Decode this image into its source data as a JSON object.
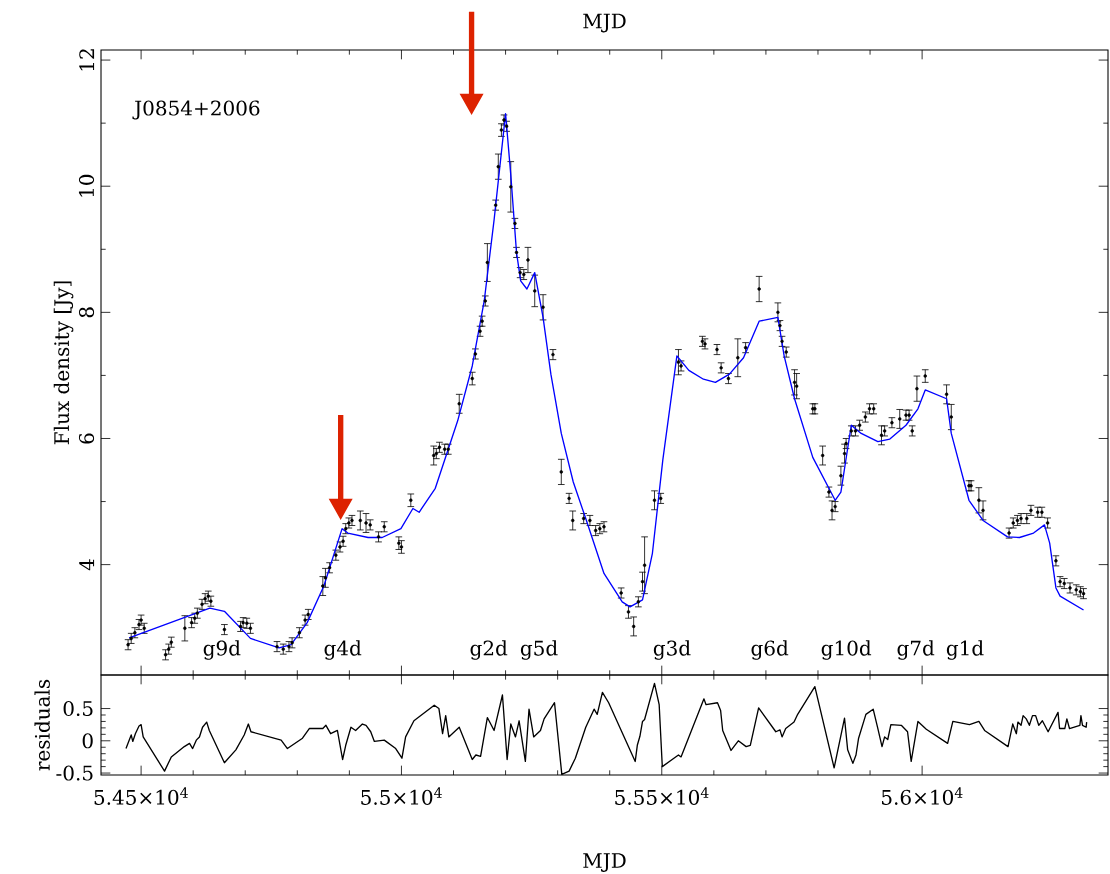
{
  "chart_data": [
    {
      "type": "scatter",
      "title": "J0854+2006",
      "x2label": "MJD",
      "ylabel": "Flux density [Jy]",
      "tick_labels": "y",
      "xlim": [
        54423,
        56357
      ],
      "ylim": [
        2.25,
        12.16
      ],
      "xticks": [
        {
          "value": 54500,
          "label": null
        },
        {
          "value": 55000,
          "label": null
        },
        {
          "value": 55500,
          "label": null
        },
        {
          "value": 56000,
          "label": null
        }
      ],
      "yticks": [
        4,
        6,
        8,
        10,
        12
      ],
      "annotations": [
        "g9d",
        "g4d",
        "g2d",
        "g5d",
        "g3d",
        "g6d",
        "g10d",
        "g7d",
        "g1d"
      ],
      "series": [
        {
          "type": "scatter",
          "color": "#000000",
          "marker": "circle",
          "x": [
            54475,
            54481,
            54488,
            54496,
            54500,
            54506,
            54547,
            54553,
            54558,
            54584,
            54597,
            54603,
            54608,
            54617,
            54623,
            54629,
            54634,
            54660,
            54691,
            54696,
            54703,
            54710,
            54761,
            54773,
            54784,
            54790,
            54804,
            54815,
            54821,
            54849,
            54854,
            54862,
            54874,
            54882,
            54888,
            54893,
            54899,
            54905,
            54921,
            54932,
            54940,
            54956,
            54967,
            54995,
            55000,
            55018,
            55062,
            55067,
            55073,
            55083,
            55090,
            55111,
            55136,
            55142,
            55151,
            55155,
            55161,
            55165,
            55181,
            55186,
            55192,
            55197,
            55202,
            55210,
            55218,
            55221,
            55228,
            55235,
            55243,
            55256,
            55272,
            55291,
            55307,
            55322,
            55329,
            55350,
            55362,
            55373,
            55381,
            55389,
            55422,
            55436,
            55446,
            55455,
            55463,
            55467,
            55486,
            55498,
            55532,
            55537,
            55578,
            55583,
            55606,
            55614,
            55628,
            55646,
            55661,
            55687,
            55723,
            55727,
            55731,
            55739,
            55755,
            55759,
            55790,
            55794,
            55809,
            55821,
            55827,
            55833,
            55844,
            55851,
            55854,
            55864,
            55872,
            55880,
            55891,
            55899,
            55907,
            55922,
            55928,
            55942,
            55957,
            55969,
            55975,
            55981,
            55990,
            56006,
            56047,
            56056,
            56090,
            56094,
            56109,
            56117,
            56167,
            56175,
            56183,
            56190,
            56201,
            56209,
            56222,
            56230,
            56241,
            56257,
            56265,
            56273,
            56284,
            56296,
            56304,
            56310
          ],
          "values": [
            2.73,
            2.83,
            2.92,
            3.05,
            3.12,
            2.99,
            2.57,
            2.66,
            2.77,
            2.99,
            3.08,
            3.15,
            3.23,
            3.37,
            3.46,
            3.5,
            3.42,
            2.97,
            3.02,
            3.08,
            3.07,
            2.99,
            2.7,
            2.66,
            2.7,
            2.76,
            2.92,
            3.12,
            3.21,
            3.66,
            3.79,
            3.95,
            4.15,
            4.28,
            4.37,
            4.57,
            4.66,
            4.7,
            4.7,
            4.66,
            4.63,
            4.44,
            4.6,
            4.34,
            4.28,
            5.02,
            5.73,
            5.76,
            5.86,
            5.83,
            5.83,
            6.55,
            6.95,
            7.34,
            7.7,
            7.86,
            8.18,
            8.79,
            9.7,
            10.31,
            10.89,
            11.05,
            10.95,
            9.99,
            9.41,
            8.95,
            8.63,
            8.6,
            8.83,
            8.34,
            8.08,
            7.33,
            5.47,
            5.05,
            4.7,
            4.73,
            4.7,
            4.54,
            4.57,
            4.6,
            3.55,
            3.25,
            3.02,
            3.41,
            3.73,
            3.99,
            5.02,
            5.05,
            7.21,
            7.15,
            7.54,
            7.5,
            7.41,
            7.12,
            6.95,
            7.28,
            7.44,
            8.37,
            8.0,
            7.79,
            7.54,
            7.37,
            6.89,
            6.83,
            6.47,
            6.47,
            5.73,
            5.15,
            4.86,
            4.92,
            5.41,
            5.76,
            5.92,
            6.12,
            6.12,
            6.21,
            6.34,
            6.47,
            6.47,
            6.05,
            6.12,
            6.25,
            6.31,
            6.37,
            6.37,
            6.12,
            6.79,
            6.99,
            6.7,
            6.34,
            5.25,
            5.25,
            5.02,
            4.86,
            4.5,
            4.66,
            4.7,
            4.73,
            4.73,
            4.86,
            4.83,
            4.83,
            4.66,
            4.06,
            3.73,
            3.7,
            3.63,
            3.6,
            3.57,
            3.54
          ],
          "errors": [
            0.08,
            0.08,
            0.08,
            0.08,
            0.08,
            0.08,
            0.08,
            0.08,
            0.08,
            0.2,
            0.08,
            0.08,
            0.08,
            0.08,
            0.08,
            0.08,
            0.08,
            0.08,
            0.08,
            0.08,
            0.08,
            0.08,
            0.08,
            0.08,
            0.08,
            0.08,
            0.08,
            0.08,
            0.08,
            0.15,
            0.15,
            0.08,
            0.08,
            0.08,
            0.08,
            0.08,
            0.08,
            0.08,
            0.15,
            0.15,
            0.08,
            0.08,
            0.08,
            0.1,
            0.1,
            0.1,
            0.15,
            0.08,
            0.08,
            0.08,
            0.08,
            0.15,
            0.1,
            0.08,
            0.08,
            0.08,
            0.08,
            0.3,
            0.08,
            0.2,
            0.1,
            0.08,
            0.08,
            0.4,
            0.08,
            0.08,
            0.08,
            0.08,
            0.2,
            0.25,
            0.2,
            0.08,
            0.2,
            0.08,
            0.15,
            0.08,
            0.08,
            0.08,
            0.08,
            0.08,
            0.08,
            0.1,
            0.15,
            0.08,
            0.15,
            0.45,
            0.15,
            0.08,
            0.2,
            0.08,
            0.08,
            0.08,
            0.08,
            0.08,
            0.08,
            0.3,
            0.08,
            0.2,
            0.15,
            0.08,
            0.08,
            0.08,
            0.2,
            0.2,
            0.08,
            0.08,
            0.15,
            0.08,
            0.15,
            0.08,
            0.15,
            0.15,
            0.08,
            0.08,
            0.08,
            0.08,
            0.08,
            0.08,
            0.08,
            0.15,
            0.08,
            0.08,
            0.15,
            0.08,
            0.08,
            0.08,
            0.2,
            0.1,
            0.15,
            0.2,
            0.08,
            0.08,
            0.2,
            0.15,
            0.08,
            0.08,
            0.08,
            0.08,
            0.08,
            0.08,
            0.08,
            0.08,
            0.08,
            0.08,
            0.08,
            0.08,
            0.08,
            0.08,
            0.08,
            0.08
          ]
        },
        {
          "type": "line",
          "color": "#0000ff",
          "x": [
            54477,
            54632,
            54660,
            54710,
            54765,
            54788,
            54819,
            54851,
            54886,
            54897,
            54936,
            54963,
            54999,
            55022,
            55034,
            55065,
            55108,
            55136,
            55159,
            55178,
            55200,
            55210,
            55221,
            55229,
            55241,
            55256,
            55272,
            55287,
            55307,
            55330,
            55354,
            55389,
            55424,
            55439,
            55463,
            55482,
            55502,
            55529,
            55552,
            55580,
            55603,
            55630,
            55657,
            55687,
            55723,
            55735,
            55755,
            55790,
            55833,
            55844,
            55856,
            55864,
            55883,
            55915,
            55938,
            55969,
            55992,
            56006,
            56047,
            56056,
            56090,
            56117,
            56164,
            56187,
            56214,
            56235,
            56245,
            56257,
            56265,
            56310
          ],
          "values": [
            2.84,
            3.31,
            3.26,
            2.83,
            2.68,
            2.73,
            3.08,
            3.66,
            4.57,
            4.5,
            4.43,
            4.43,
            4.57,
            4.89,
            4.83,
            5.21,
            6.28,
            7.15,
            8.18,
            9.47,
            11.15,
            10.18,
            8.95,
            8.5,
            8.37,
            8.63,
            7.92,
            7.02,
            6.08,
            5.31,
            4.73,
            3.86,
            3.41,
            3.33,
            3.44,
            4.18,
            5.66,
            7.31,
            7.08,
            6.94,
            6.89,
            7.02,
            7.28,
            7.86,
            7.92,
            7.31,
            6.63,
            5.7,
            5.02,
            5.15,
            5.79,
            6.21,
            6.08,
            5.95,
            5.99,
            6.21,
            6.47,
            6.77,
            6.63,
            6.08,
            5.02,
            4.7,
            4.44,
            4.43,
            4.5,
            4.63,
            4.34,
            3.63,
            3.5,
            3.28
          ]
        }
      ]
    },
    {
      "type": "line",
      "xlabel": "MJD",
      "ylabel": "residuals",
      "color": "#000000",
      "xlim": [
        54423,
        56357
      ],
      "ylim": [
        -0.53,
        1.02
      ],
      "xticks": [
        {
          "value": 54500,
          "label": "5.45×10$^{4}$"
        },
        {
          "value": 55000,
          "label": "5.5×10$^{4}$"
        },
        {
          "value": 55500,
          "label": "5.55×10$^{4}$"
        },
        {
          "value": 56000,
          "label": "5.6×10$^{4}$"
        }
      ],
      "yticks": [
        -0.5,
        0,
        0.5
      ],
      "x": [
        54471,
        54481,
        54484,
        54489,
        54496,
        54500,
        54504,
        54545,
        54558,
        54583,
        54593,
        54599,
        54606,
        54612,
        54618,
        54626,
        54631,
        54660,
        54682,
        54698,
        54706,
        54711,
        54769,
        54781,
        54810,
        54823,
        54849,
        54855,
        54864,
        54877,
        54887,
        54893,
        54903,
        54912,
        54925,
        54932,
        54941,
        54948,
        54967,
        54989,
        55001,
        55008,
        55024,
        55063,
        55072,
        55079,
        55085,
        55091,
        55111,
        55136,
        55143,
        55152,
        55165,
        55178,
        55194,
        55203,
        55210,
        55219,
        55226,
        55238,
        55245,
        55254,
        55267,
        55274,
        55294,
        55308,
        55322,
        55334,
        55354,
        55370,
        55376,
        55386,
        55398,
        55449,
        55453,
        55458,
        55463,
        55467,
        55486,
        55495,
        55501,
        55532,
        55537,
        55581,
        55585,
        55607,
        55613,
        55617,
        55633,
        55647,
        55662,
        55670,
        55686,
        55719,
        55727,
        55731,
        55738,
        55754,
        55761,
        55794,
        55831,
        55851,
        55857,
        55867,
        55873,
        55878,
        55892,
        55906,
        55915,
        55923,
        55928,
        55934,
        55940,
        55960,
        55972,
        55979,
        55992,
        56008,
        56049,
        56059,
        56091,
        56109,
        56120,
        56165,
        56174,
        56181,
        56184,
        56190,
        56194,
        56200,
        56206,
        56212,
        56218,
        56224,
        56231,
        56242,
        56261,
        56264,
        56274,
        56278,
        56283,
        56303,
        56305,
        56308,
        56315,
        56316
      ],
      "values": [
        -0.12,
        0.09,
        -0.01,
        0.11,
        0.23,
        0.25,
        0.06,
        -0.47,
        -0.25,
        -0.09,
        -0.04,
        -0.12,
        0.01,
        0.06,
        0.21,
        0.29,
        0.16,
        -0.34,
        -0.14,
        0.09,
        0.26,
        0.14,
        0.01,
        -0.12,
        0.04,
        0.19,
        0.19,
        0.24,
        0.11,
        0.16,
        -0.29,
        -0.07,
        0.21,
        0.16,
        0.26,
        0.24,
        0.14,
        -0.01,
        0.01,
        -0.12,
        -0.27,
        0.06,
        0.31,
        0.55,
        0.5,
        0.11,
        0.39,
        0.06,
        0.21,
        -0.29,
        -0.22,
        -0.24,
        0.36,
        0.16,
        0.71,
        -0.29,
        0.26,
        0.06,
        0.31,
        -0.32,
        0.49,
        0.06,
        0.16,
        0.34,
        0.59,
        -0.52,
        -0.47,
        -0.27,
        0.21,
        0.49,
        0.41,
        0.75,
        0.59,
        -0.32,
        -0.07,
        0.07,
        0.3,
        0.33,
        0.89,
        0.56,
        -0.4,
        -0.22,
        -0.25,
        0.65,
        0.56,
        0.59,
        0.47,
        0.16,
        -0.15,
        0,
        -0.09,
        -0.07,
        0.51,
        0.14,
        0.17,
        0.06,
        0.19,
        0.29,
        0.41,
        0.84,
        -0.42,
        0.35,
        -0.14,
        -0.35,
        -0.22,
        0.04,
        0.41,
        0.49,
        0.19,
        -0.09,
        0.06,
        0.02,
        0.25,
        0.24,
        0.14,
        -0.32,
        0.3,
        0.18,
        -0.04,
        0.3,
        0.25,
        0.3,
        0.16,
        -0.09,
        0.26,
        0.11,
        0.29,
        0.24,
        0.39,
        0.34,
        0.24,
        0.39,
        0.39,
        0.24,
        0.31,
        0.14,
        0.44,
        0.19,
        0.19,
        0.34,
        0.19,
        0.24,
        0.39,
        0.24,
        0.21,
        0.29
      ]
    }
  ]
}
